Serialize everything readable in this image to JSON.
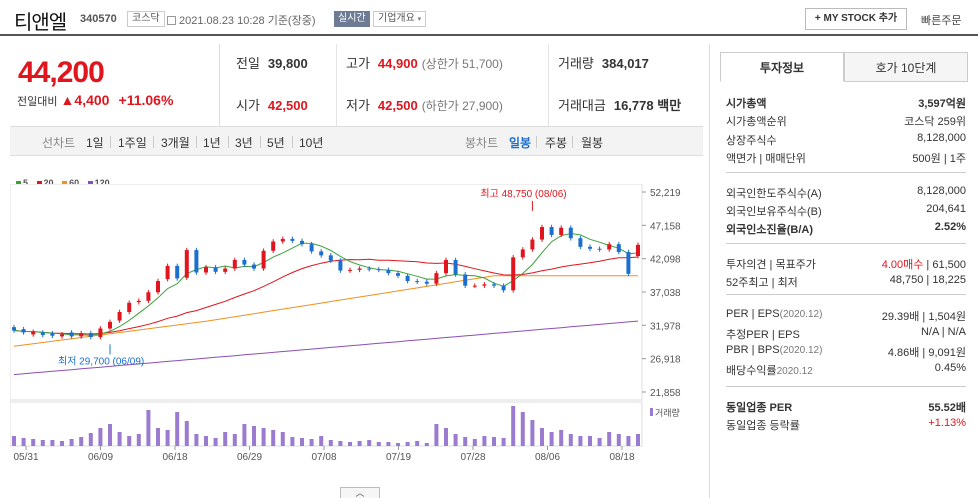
{
  "header": {
    "name": "티앤엘",
    "code": "340570",
    "market": "코스닥",
    "date": "2021.08.23 10:28 기준(장중)",
    "live": "실시간",
    "company_info": "기업개요",
    "mystock": "+ MY STOCK 추가",
    "quick_order": "빠른주문"
  },
  "price": {
    "current": "44,200",
    "change_label": "전일대비",
    "change": "4,400",
    "change_pct": "+11.06%"
  },
  "quote": {
    "prev_label": "전일",
    "prev": "39,800",
    "high_label": "고가",
    "high": "44,900",
    "high_limit": "(상한가 51,700)",
    "volume_label": "거래량",
    "volume": "384,017",
    "open_label": "시가",
    "open": "42,500",
    "low_label": "저가",
    "low": "42,500",
    "low_limit": "(하한가 27,900)",
    "amount_label": "거래대금",
    "amount": "16,778",
    "amount_unit": "백만"
  },
  "periods": {
    "label": "선차트",
    "items": [
      "1일",
      "1주일",
      "3개월",
      "1년",
      "3년",
      "5년",
      "10년"
    ],
    "candle_label": "봉차트",
    "candle_items": [
      "일봉",
      "주봉",
      "월봉"
    ],
    "selected": "일봉"
  },
  "legend": [
    {
      "name": "5",
      "color": "#3ba03b"
    },
    {
      "name": "20",
      "color": "#e0151d"
    },
    {
      "name": "60",
      "color": "#f0901e"
    },
    {
      "name": "120",
      "color": "#8a4fb2"
    }
  ],
  "chart_data": {
    "type": "candlestick",
    "y_ticks": [
      "52,219",
      "47,158",
      "42,098",
      "37,038",
      "31,978",
      "26,918",
      "21,858"
    ],
    "ylim": [
      21858,
      52219
    ],
    "x_ticks": [
      "05/31",
      "06/09",
      "06/18",
      "06/29",
      "07/08",
      "07/19",
      "07/28",
      "08/06",
      "08/18"
    ],
    "high_annotation": "최고 48,750 (08/06)",
    "low_annotation": "최저 29,700 (06/09)",
    "volume_label": "거래량",
    "closes": [
      31200,
      30900,
      31000,
      30500,
      30400,
      30600,
      30300,
      30800,
      30200,
      31500,
      32500,
      34000,
      35400,
      35700,
      37000,
      38700,
      41000,
      39100,
      43400,
      40000,
      40800,
      40100,
      40600,
      41900,
      41200,
      40600,
      43300,
      44700,
      45100,
      44800,
      44300,
      43200,
      42600,
      41800,
      40300,
      40400,
      40600,
      40500,
      40400,
      39900,
      39500,
      38700,
      38600,
      38300,
      39900,
      41900,
      39700,
      38000,
      38000,
      38200,
      38000,
      37300,
      42300,
      43500,
      45000,
      46900,
      45700,
      46800,
      45200,
      43900,
      43600,
      43500,
      44300,
      43100,
      39800,
      44200
    ],
    "opens": [
      31700,
      31400,
      30600,
      30900,
      30800,
      30300,
      30900,
      30300,
      30800,
      30200,
      31500,
      32700,
      34000,
      35500,
      35700,
      37000,
      39000,
      41000,
      39200,
      43400,
      40000,
      40800,
      40100,
      40600,
      41900,
      41200,
      40600,
      43300,
      44700,
      45100,
      44800,
      44300,
      43200,
      42600,
      41800,
      40300,
      40400,
      40600,
      40500,
      40400,
      39900,
      39500,
      38700,
      38600,
      38300,
      39900,
      41900,
      39700,
      38000,
      38000,
      38200,
      38000,
      37300,
      42300,
      43500,
      45000,
      46900,
      45700,
      46800,
      45200,
      43900,
      43600,
      43500,
      44300,
      43100,
      42500
    ],
    "volumes": [
      10,
      8,
      7,
      6,
      6,
      5,
      7,
      9,
      13,
      18,
      22,
      14,
      10,
      12,
      36,
      18,
      16,
      34,
      25,
      12,
      10,
      8,
      14,
      12,
      22,
      20,
      18,
      16,
      14,
      9,
      8,
      7,
      10,
      6,
      5,
      4,
      5,
      6,
      4,
      4,
      3,
      4,
      5,
      3,
      22,
      18,
      12,
      9,
      7,
      10,
      9,
      8,
      40,
      34,
      26,
      18,
      14,
      16,
      12,
      10,
      10,
      8,
      14,
      12,
      10,
      12
    ]
  },
  "right": {
    "tab_invest": "투자정보",
    "tab_quote10": "호가 10단계",
    "rows": [
      {
        "label": "시가총액",
        "value": "3,597억원"
      },
      {
        "label": "시가총액순위",
        "value": "코스닥 259위"
      },
      {
        "label": "상장주식수",
        "value": "8,128,000"
      },
      {
        "label": "액면가 | 매매단위",
        "value": "500원 | 1주"
      },
      {
        "label": "외국인한도주식수(A)",
        "value": "8,128,000"
      },
      {
        "label": "외국인보유주식수(B)",
        "value": "204,641"
      },
      {
        "label": "외국인소진율(B/A)",
        "value": "2.52%"
      },
      {
        "label": "투자의견 | 목표주가",
        "value_red": "4.00매수",
        "value": " | 61,500"
      },
      {
        "label": "52주최고 | 최저",
        "value": "48,750 | 18,225"
      },
      {
        "label": "PER | EPS",
        "label_sub": "(2020.12)",
        "value": "29.39배 | 1,504원"
      },
      {
        "label": "추정PER | EPS",
        "value": "N/A | N/A"
      },
      {
        "label": "PBR | BPS",
        "label_sub": "(2020.12)",
        "value": "4.86배 | 9,091원"
      },
      {
        "label": "배당수익률",
        "label_sub": "2020.12",
        "value": "0.45%"
      },
      {
        "label": "동일업종 PER",
        "value": "55.52배"
      },
      {
        "label": "동일업종 등락률",
        "value": "+1.13%"
      }
    ]
  }
}
